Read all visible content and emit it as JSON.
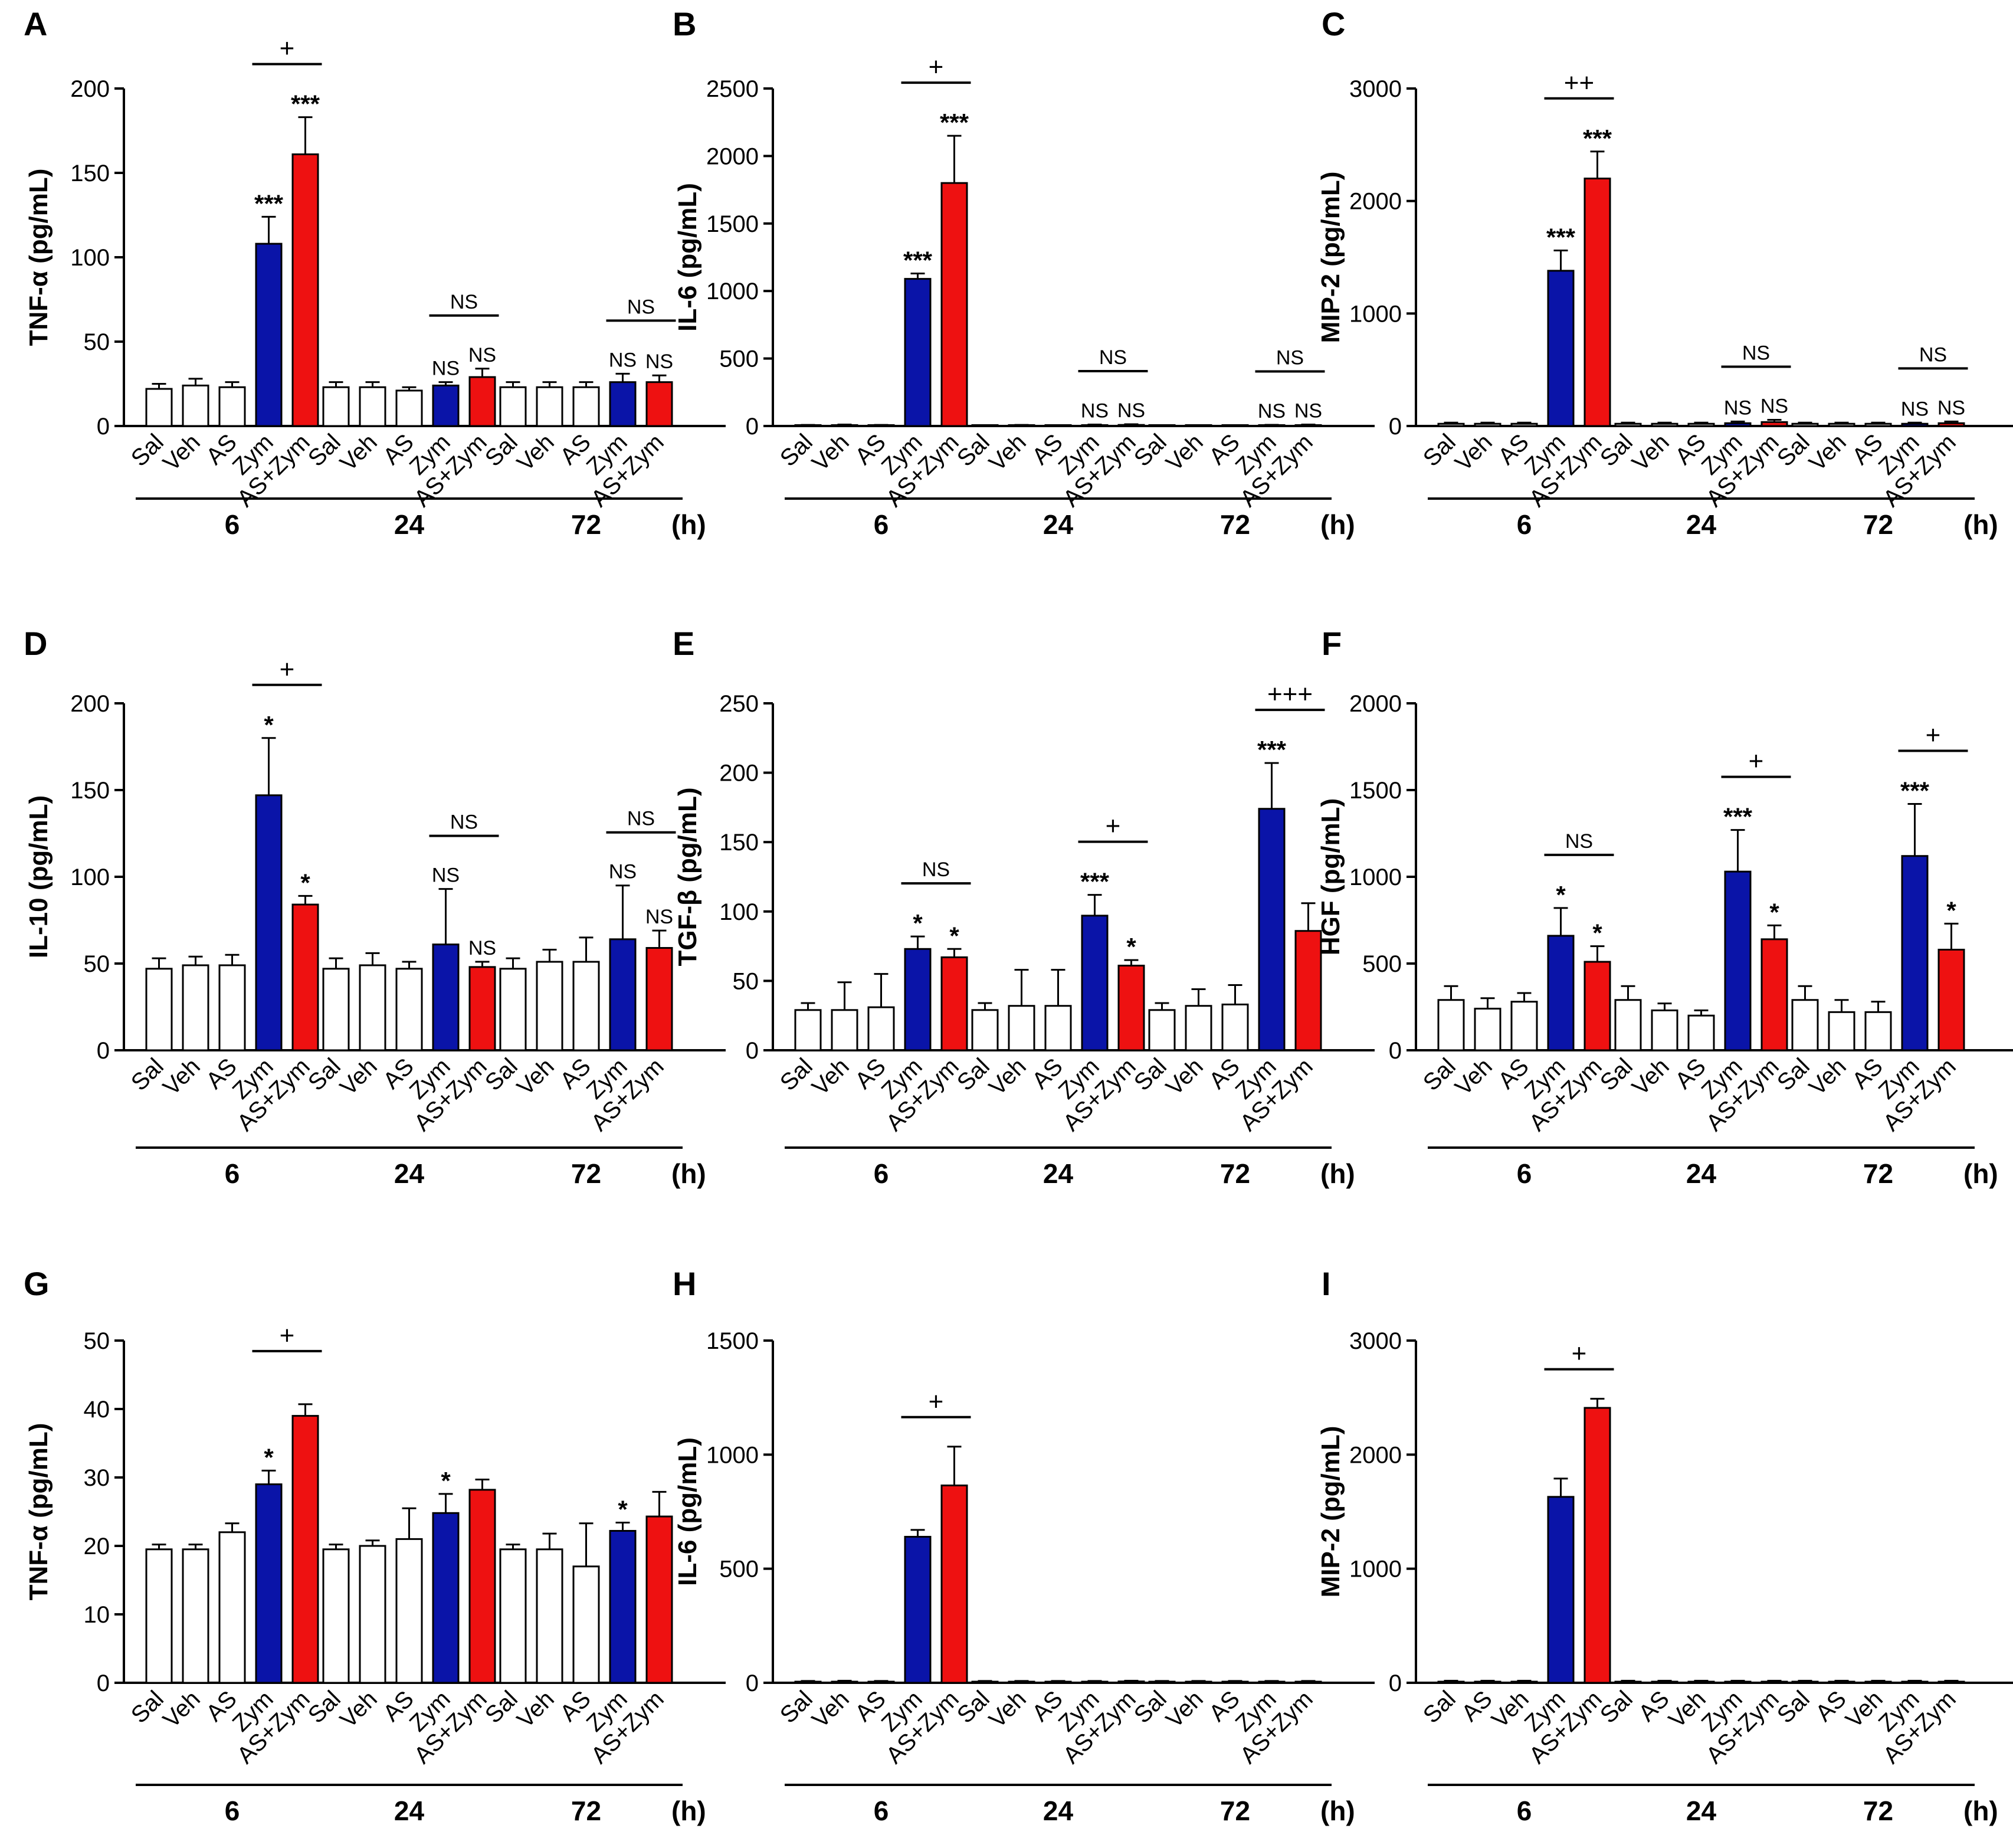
{
  "figure": {
    "time_unit": "(h)",
    "group_labels": [
      "6",
      "24",
      "72"
    ]
  },
  "chart_data": [
    {
      "id": "A",
      "type": "bar",
      "ylabel": "TNF-α (pg/mL)",
      "ylim": [
        0,
        200
      ],
      "yticks": [
        0,
        50,
        100,
        150,
        200
      ],
      "categories": [
        "Sal",
        "Veh",
        "AS",
        "Zym",
        "AS+Zym"
      ],
      "groups": [
        {
          "time": "6",
          "values": [
            22,
            24,
            23,
            108,
            161
          ],
          "errors": [
            3,
            4,
            3,
            16,
            22
          ],
          "marks": [
            "",
            "",
            "",
            "***",
            "***"
          ],
          "comparison": "+"
        },
        {
          "time": "24",
          "values": [
            23,
            23,
            21,
            24,
            29
          ],
          "errors": [
            3,
            3,
            2,
            2,
            5
          ],
          "marks": [
            "",
            "",
            "",
            "NS",
            "NS"
          ],
          "comparison": "NS"
        },
        {
          "time": "72",
          "values": [
            23,
            23,
            23,
            26,
            26
          ],
          "errors": [
            3,
            3,
            3,
            5,
            4
          ],
          "marks": [
            "",
            "",
            "",
            "NS",
            "NS"
          ],
          "comparison": "NS"
        }
      ]
    },
    {
      "id": "B",
      "type": "bar",
      "ylabel": "IL-6 (pg/mL)",
      "ylim": [
        0,
        2500
      ],
      "yticks": [
        0,
        500,
        1000,
        1500,
        2000,
        2500
      ],
      "categories": [
        "Sal",
        "Veh",
        "AS",
        "Zym",
        "AS+Zym"
      ],
      "groups": [
        {
          "time": "6",
          "values": [
            5,
            6,
            5,
            1090,
            1800
          ],
          "errors": [
            3,
            5,
            3,
            40,
            350
          ],
          "marks": [
            "",
            "",
            "",
            "***",
            "***"
          ],
          "comparison": "+"
        },
        {
          "time": "24",
          "values": [
            3,
            5,
            3,
            6,
            8
          ],
          "errors": [
            2,
            3,
            2,
            5,
            5
          ],
          "marks": [
            "",
            "",
            "",
            "NS",
            "NS"
          ],
          "comparison": "NS"
        },
        {
          "time": "72",
          "values": [
            3,
            3,
            3,
            5,
            6
          ],
          "errors": [
            2,
            2,
            2,
            4,
            5
          ],
          "marks": [
            "",
            "",
            "",
            "NS",
            "NS"
          ],
          "comparison": "NS"
        }
      ]
    },
    {
      "id": "C",
      "type": "bar",
      "ylabel": "MIP-2 (pg/mL)",
      "ylim": [
        0,
        3000
      ],
      "yticks": [
        0,
        1000,
        2000,
        3000
      ],
      "categories": [
        "Sal",
        "Veh",
        "AS",
        "Zym",
        "AS+Zym"
      ],
      "groups": [
        {
          "time": "6",
          "values": [
            20,
            20,
            20,
            1380,
            2200
          ],
          "errors": [
            10,
            10,
            10,
            180,
            240
          ],
          "marks": [
            "",
            "",
            "",
            "***",
            "***"
          ],
          "comparison": "++"
        },
        {
          "time": "24",
          "values": [
            20,
            20,
            20,
            25,
            35
          ],
          "errors": [
            10,
            10,
            10,
            15,
            20
          ],
          "marks": [
            "",
            "",
            "",
            "NS",
            "NS"
          ],
          "comparison": "NS"
        },
        {
          "time": "72",
          "values": [
            20,
            20,
            20,
            20,
            25
          ],
          "errors": [
            10,
            10,
            10,
            10,
            15
          ],
          "marks": [
            "",
            "",
            "",
            "NS",
            "NS"
          ],
          "comparison": "NS"
        }
      ]
    },
    {
      "id": "D",
      "type": "bar",
      "ylabel": "IL-10 (pg/mL)",
      "ylim": [
        0,
        200
      ],
      "yticks": [
        0,
        50,
        100,
        150,
        200
      ],
      "categories": [
        "Sal",
        "Veh",
        "AS",
        "Zym",
        "AS+Zym"
      ],
      "groups": [
        {
          "time": "6",
          "values": [
            47,
            49,
            49,
            147,
            84
          ],
          "errors": [
            6,
            5,
            6,
            33,
            5
          ],
          "marks": [
            "",
            "",
            "",
            "*",
            "*"
          ],
          "comparison": "+"
        },
        {
          "time": "24",
          "values": [
            47,
            49,
            47,
            61,
            48
          ],
          "errors": [
            6,
            7,
            4,
            32,
            3
          ],
          "marks": [
            "",
            "",
            "",
            "NS",
            "NS"
          ],
          "comparison": "NS"
        },
        {
          "time": "72",
          "values": [
            47,
            51,
            51,
            64,
            59
          ],
          "errors": [
            6,
            7,
            14,
            31,
            10
          ],
          "marks": [
            "",
            "",
            "",
            "NS",
            "NS"
          ],
          "comparison": "NS"
        }
      ]
    },
    {
      "id": "E",
      "type": "bar",
      "ylabel": "TGF-β (pg/mL)",
      "ylim": [
        0,
        250
      ],
      "yticks": [
        0,
        50,
        100,
        150,
        200,
        250
      ],
      "categories": [
        "Sal",
        "Veh",
        "AS",
        "Zym",
        "AS+Zym"
      ],
      "groups": [
        {
          "time": "6",
          "values": [
            29,
            29,
            31,
            73,
            67
          ],
          "errors": [
            5,
            20,
            24,
            9,
            6
          ],
          "marks": [
            "",
            "",
            "",
            "*",
            "*"
          ],
          "comparison": "NS"
        },
        {
          "time": "24",
          "values": [
            29,
            32,
            32,
            97,
            61
          ],
          "errors": [
            5,
            26,
            26,
            15,
            4
          ],
          "marks": [
            "",
            "",
            "",
            "***",
            "*"
          ],
          "comparison": "+"
        },
        {
          "time": "72",
          "values": [
            29,
            32,
            33,
            174,
            86
          ],
          "errors": [
            5,
            12,
            14,
            33,
            20
          ],
          "marks": [
            "",
            "",
            "",
            "***",
            ""
          ],
          "comparison": "+++"
        }
      ]
    },
    {
      "id": "F",
      "type": "bar",
      "ylabel": "HGF (pg/mL)",
      "ylim": [
        0,
        2000
      ],
      "yticks": [
        0,
        500,
        1000,
        1500,
        2000
      ],
      "categories": [
        "Sal",
        "Veh",
        "AS",
        "Zym",
        "AS+Zym"
      ],
      "groups": [
        {
          "time": "6",
          "values": [
            290,
            240,
            280,
            660,
            510
          ],
          "errors": [
            80,
            60,
            50,
            160,
            90
          ],
          "marks": [
            "",
            "",
            "",
            "*",
            "*"
          ],
          "comparison": "NS"
        },
        {
          "time": "24",
          "values": [
            290,
            230,
            200,
            1030,
            640
          ],
          "errors": [
            80,
            40,
            30,
            240,
            80
          ],
          "marks": [
            "",
            "",
            "",
            "***",
            "*"
          ],
          "comparison": "+"
        },
        {
          "time": "72",
          "values": [
            290,
            220,
            220,
            1120,
            580
          ],
          "errors": [
            80,
            70,
            60,
            300,
            150
          ],
          "marks": [
            "",
            "",
            "",
            "***",
            "*"
          ],
          "comparison": "+"
        }
      ]
    },
    {
      "id": "G",
      "type": "bar",
      "ylabel": "TNF-α (pg/mL)",
      "ylim": [
        0,
        50
      ],
      "yticks": [
        0,
        10,
        20,
        30,
        40,
        50
      ],
      "categories": [
        "Sal",
        "Veh",
        "AS",
        "Zym",
        "AS+Zym"
      ],
      "groups": [
        {
          "time": "6",
          "values": [
            19.5,
            19.5,
            22,
            29,
            39
          ],
          "errors": [
            0.7,
            0.7,
            1.3,
            2,
            1.7
          ],
          "marks": [
            "",
            "",
            "",
            "*",
            ""
          ],
          "comparison": "+"
        },
        {
          "time": "24",
          "values": [
            19.5,
            20,
            21,
            24.8,
            28.2
          ],
          "errors": [
            0.7,
            0.8,
            4.5,
            2.8,
            1.5
          ],
          "marks": [
            "",
            "",
            "",
            "*",
            ""
          ],
          "comparison": ""
        },
        {
          "time": "72",
          "values": [
            19.5,
            19.5,
            17,
            22.2,
            24.3
          ],
          "errors": [
            0.7,
            2.3,
            6.3,
            1.2,
            3.6
          ],
          "marks": [
            "",
            "",
            "",
            "*",
            ""
          ],
          "comparison": ""
        }
      ]
    },
    {
      "id": "H",
      "type": "bar",
      "ylabel": "IL-6 (pg/mL)",
      "ylim": [
        0,
        1500
      ],
      "yticks": [
        0,
        500,
        1000,
        1500
      ],
      "categories": [
        "Sal",
        "Veh",
        "AS",
        "Zym",
        "AS+Zym"
      ],
      "groups": [
        {
          "time": "6",
          "values": [
            5,
            5,
            5,
            640,
            865
          ],
          "errors": [
            3,
            4,
            3,
            30,
            170
          ],
          "marks": [
            "",
            "",
            "",
            "",
            ""
          ],
          "comparison": "+"
        },
        {
          "time": "24",
          "values": [
            5,
            5,
            5,
            5,
            6
          ],
          "errors": [
            3,
            3,
            3,
            3,
            3
          ],
          "marks": [
            "",
            "",
            "",
            "",
            ""
          ],
          "comparison": ""
        },
        {
          "time": "72",
          "values": [
            5,
            5,
            5,
            5,
            5
          ],
          "errors": [
            3,
            3,
            3,
            3,
            3
          ],
          "marks": [
            "",
            "",
            "",
            "",
            ""
          ],
          "comparison": ""
        }
      ]
    },
    {
      "id": "I",
      "type": "bar",
      "ylabel": "MIP-2 (pg/mL)",
      "ylim": [
        0,
        3000
      ],
      "yticks": [
        0,
        1000,
        2000,
        3000
      ],
      "categories": [
        "Sal",
        "AS",
        "Veh",
        "Zym",
        "AS+Zym"
      ],
      "groups": [
        {
          "time": "6",
          "values": [
            10,
            10,
            10,
            1630,
            2410
          ],
          "errors": [
            8,
            8,
            8,
            160,
            80
          ],
          "marks": [
            "",
            "",
            "",
            "",
            ""
          ],
          "comparison": "+"
        },
        {
          "time": "24",
          "values": [
            10,
            10,
            10,
            10,
            10
          ],
          "errors": [
            8,
            8,
            8,
            8,
            8
          ],
          "marks": [
            "",
            "",
            "",
            "",
            ""
          ],
          "comparison": ""
        },
        {
          "time": "72",
          "values": [
            10,
            10,
            10,
            10,
            10
          ],
          "errors": [
            8,
            8,
            8,
            8,
            8
          ],
          "marks": [
            "",
            "",
            "",
            "",
            ""
          ],
          "comparison": ""
        }
      ]
    }
  ]
}
